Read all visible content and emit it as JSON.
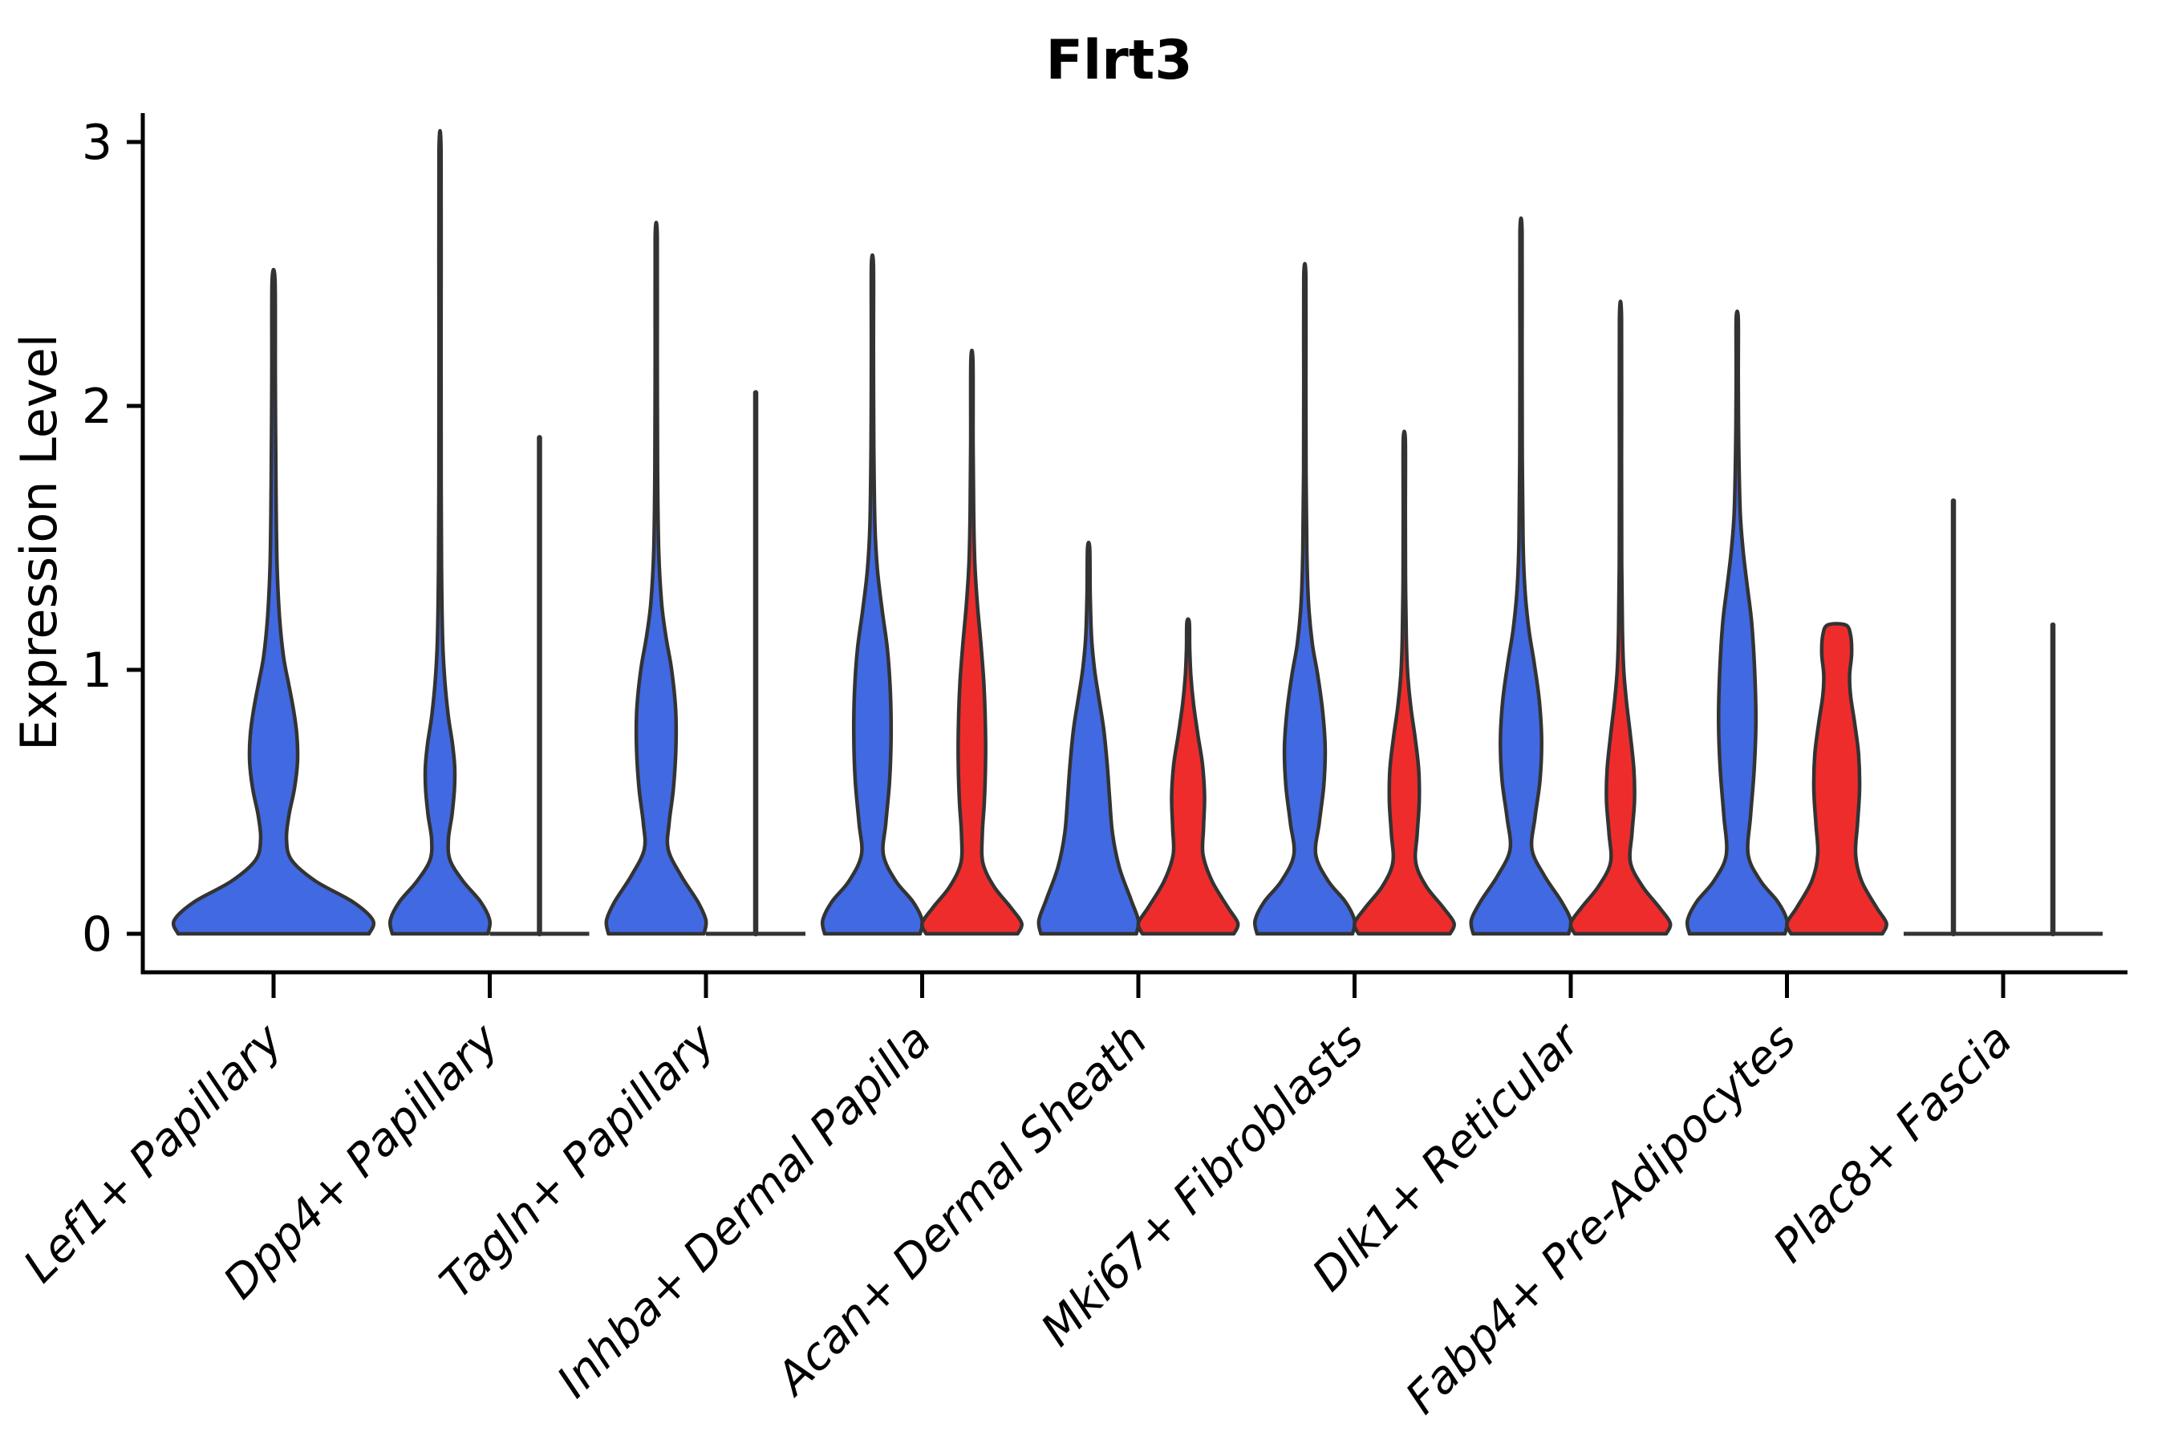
{
  "chart_data": {
    "type": "violin",
    "title": "Flrt3",
    "ylabel": "Expression Level",
    "xlabel": "",
    "yticks": [
      "0",
      "1",
      "2",
      "3"
    ],
    "ylim": [
      0,
      3.05
    ],
    "grid": false,
    "legend": "none",
    "colors": {
      "group_blue": "#4169E1",
      "group_red": "#EE2C2C",
      "outline": "#333333",
      "axis": "#000000"
    },
    "categories": [
      "Lef1+ Papillary",
      "Dpp4+ Papillary",
      "Tagln+ Papillary",
      "Inhba+ Dermal Papilla",
      "Acan+ Dermal Sheath",
      "Mki67+ Fibroblasts",
      "Dlk1+ Reticular",
      "Fabp4+ Pre-Adipocytes",
      "Plac8+ Fascia"
    ],
    "violins": [
      {
        "category": "Lef1+ Papillary",
        "blue": {
          "style": "density",
          "full_width": true,
          "max_expression": 2.47,
          "density_profile": [
            [
              0,
              0.96
            ],
            [
              0.05,
              1.0
            ],
            [
              0.12,
              0.8
            ],
            [
              0.2,
              0.42
            ],
            [
              0.28,
              0.18
            ],
            [
              0.36,
              0.13
            ],
            [
              0.45,
              0.155
            ],
            [
              0.55,
              0.21
            ],
            [
              0.65,
              0.24
            ],
            [
              0.75,
              0.235
            ],
            [
              0.85,
              0.2
            ],
            [
              0.95,
              0.15
            ],
            [
              1.05,
              0.1
            ],
            [
              1.2,
              0.06
            ],
            [
              1.4,
              0.035
            ],
            [
              1.7,
              0.024
            ],
            [
              2.1,
              0.018
            ],
            [
              2.47,
              0.015
            ]
          ]
        },
        "red": {
          "style": "absent"
        }
      },
      {
        "category": "Dpp4+ Papillary",
        "blue": {
          "style": "density",
          "max_expression": 2.96,
          "density_profile": [
            [
              0,
              0.96
            ],
            [
              0.05,
              1.0
            ],
            [
              0.12,
              0.82
            ],
            [
              0.2,
              0.46
            ],
            [
              0.28,
              0.2
            ],
            [
              0.36,
              0.17
            ],
            [
              0.45,
              0.24
            ],
            [
              0.55,
              0.29
            ],
            [
              0.63,
              0.295
            ],
            [
              0.72,
              0.25
            ],
            [
              0.82,
              0.17
            ],
            [
              0.95,
              0.1
            ],
            [
              1.1,
              0.055
            ],
            [
              1.35,
              0.032
            ],
            [
              1.7,
              0.022
            ],
            [
              2.3,
              0.017
            ],
            [
              2.96,
              0.014
            ]
          ]
        },
        "red": {
          "style": "flat_zero",
          "max_expression": 1.88
        }
      },
      {
        "category": "Tagln+ Papillary",
        "blue": {
          "style": "density",
          "max_expression": 2.64,
          "density_profile": [
            [
              0,
              0.96
            ],
            [
              0.05,
              1.0
            ],
            [
              0.12,
              0.84
            ],
            [
              0.22,
              0.5
            ],
            [
              0.32,
              0.24
            ],
            [
              0.42,
              0.26
            ],
            [
              0.55,
              0.345
            ],
            [
              0.7,
              0.395
            ],
            [
              0.85,
              0.39
            ],
            [
              1.0,
              0.31
            ],
            [
              1.12,
              0.2
            ],
            [
              1.25,
              0.11
            ],
            [
              1.45,
              0.05
            ],
            [
              1.75,
              0.028
            ],
            [
              2.2,
              0.018
            ],
            [
              2.64,
              0.015
            ]
          ]
        },
        "red": {
          "style": "flat_zero",
          "max_expression": 2.05
        }
      },
      {
        "category": "Inhba+ Dermal Papilla",
        "blue": {
          "style": "density",
          "max_expression": 2.53,
          "density_profile": [
            [
              0,
              0.96
            ],
            [
              0.05,
              1.0
            ],
            [
              0.12,
              0.82
            ],
            [
              0.2,
              0.47
            ],
            [
              0.3,
              0.22
            ],
            [
              0.42,
              0.27
            ],
            [
              0.58,
              0.345
            ],
            [
              0.75,
              0.375
            ],
            [
              0.92,
              0.36
            ],
            [
              1.08,
              0.3
            ],
            [
              1.22,
              0.2
            ],
            [
              1.38,
              0.1
            ],
            [
              1.55,
              0.05
            ],
            [
              1.85,
              0.028
            ],
            [
              2.2,
              0.018
            ],
            [
              2.53,
              0.015
            ]
          ]
        },
        "red": {
          "style": "density",
          "max_expression": 2.17,
          "density_profile": [
            [
              0,
              0.92
            ],
            [
              0.04,
              1.0
            ],
            [
              0.1,
              0.78
            ],
            [
              0.18,
              0.44
            ],
            [
              0.27,
              0.22
            ],
            [
              0.38,
              0.21
            ],
            [
              0.5,
              0.25
            ],
            [
              0.65,
              0.275
            ],
            [
              0.8,
              0.27
            ],
            [
              0.95,
              0.24
            ],
            [
              1.1,
              0.18
            ],
            [
              1.25,
              0.11
            ],
            [
              1.4,
              0.06
            ],
            [
              1.6,
              0.035
            ],
            [
              1.85,
              0.024
            ],
            [
              2.17,
              0.018
            ]
          ]
        }
      },
      {
        "category": "Acan+ Dermal Sheath",
        "blue": {
          "style": "density",
          "max_expression": 1.46,
          "density_profile": [
            [
              0,
              0.96
            ],
            [
              0.05,
              1.0
            ],
            [
              0.13,
              0.85
            ],
            [
              0.25,
              0.62
            ],
            [
              0.38,
              0.48
            ],
            [
              0.52,
              0.42
            ],
            [
              0.65,
              0.37
            ],
            [
              0.78,
              0.3
            ],
            [
              0.9,
              0.2
            ],
            [
              1.0,
              0.12
            ],
            [
              1.12,
              0.06
            ],
            [
              1.28,
              0.032
            ],
            [
              1.46,
              0.022
            ]
          ]
        },
        "red": {
          "style": "density",
          "max_expression": 1.18,
          "density_profile": [
            [
              0,
              0.92
            ],
            [
              0.04,
              1.0
            ],
            [
              0.1,
              0.8
            ],
            [
              0.2,
              0.48
            ],
            [
              0.3,
              0.3
            ],
            [
              0.4,
              0.31
            ],
            [
              0.52,
              0.33
            ],
            [
              0.64,
              0.29
            ],
            [
              0.75,
              0.2
            ],
            [
              0.87,
              0.11
            ],
            [
              0.98,
              0.055
            ],
            [
              1.08,
              0.033
            ],
            [
              1.18,
              0.024
            ]
          ]
        }
      },
      {
        "category": "Mki67+ Fibroblasts",
        "blue": {
          "style": "density",
          "max_expression": 2.49,
          "density_profile": [
            [
              0,
              0.96
            ],
            [
              0.05,
              1.0
            ],
            [
              0.12,
              0.82
            ],
            [
              0.2,
              0.47
            ],
            [
              0.3,
              0.22
            ],
            [
              0.42,
              0.29
            ],
            [
              0.56,
              0.38
            ],
            [
              0.7,
              0.41
            ],
            [
              0.84,
              0.36
            ],
            [
              0.98,
              0.26
            ],
            [
              1.1,
              0.15
            ],
            [
              1.25,
              0.075
            ],
            [
              1.45,
              0.04
            ],
            [
              1.75,
              0.025
            ],
            [
              2.1,
              0.018
            ],
            [
              2.49,
              0.015
            ]
          ]
        },
        "red": {
          "style": "density",
          "max_expression": 1.87,
          "density_profile": [
            [
              0,
              0.92
            ],
            [
              0.04,
              1.0
            ],
            [
              0.1,
              0.78
            ],
            [
              0.18,
              0.44
            ],
            [
              0.27,
              0.23
            ],
            [
              0.38,
              0.26
            ],
            [
              0.5,
              0.3
            ],
            [
              0.62,
              0.29
            ],
            [
              0.74,
              0.22
            ],
            [
              0.86,
              0.13
            ],
            [
              0.98,
              0.07
            ],
            [
              1.12,
              0.04
            ],
            [
              1.35,
              0.025
            ],
            [
              1.6,
              0.02
            ],
            [
              1.87,
              0.016
            ]
          ]
        }
      },
      {
        "category": "Dlk1+ Reticular",
        "blue": {
          "style": "density",
          "max_expression": 2.66,
          "density_profile": [
            [
              0,
              0.96
            ],
            [
              0.05,
              1.0
            ],
            [
              0.12,
              0.82
            ],
            [
              0.22,
              0.47
            ],
            [
              0.32,
              0.22
            ],
            [
              0.44,
              0.28
            ],
            [
              0.58,
              0.38
            ],
            [
              0.73,
              0.415
            ],
            [
              0.88,
              0.37
            ],
            [
              1.02,
              0.27
            ],
            [
              1.15,
              0.16
            ],
            [
              1.3,
              0.08
            ],
            [
              1.5,
              0.04
            ],
            [
              1.85,
              0.025
            ],
            [
              2.25,
              0.018
            ],
            [
              2.66,
              0.015
            ]
          ]
        },
        "red": {
          "style": "density",
          "max_expression": 2.33,
          "density_profile": [
            [
              0,
              0.92
            ],
            [
              0.04,
              1.0
            ],
            [
              0.1,
              0.78
            ],
            [
              0.18,
              0.44
            ],
            [
              0.27,
              0.2
            ],
            [
              0.38,
              0.23
            ],
            [
              0.5,
              0.28
            ],
            [
              0.62,
              0.27
            ],
            [
              0.75,
              0.2
            ],
            [
              0.88,
              0.12
            ],
            [
              1.0,
              0.065
            ],
            [
              1.15,
              0.038
            ],
            [
              1.4,
              0.025
            ],
            [
              1.8,
              0.018
            ],
            [
              2.33,
              0.015
            ]
          ]
        }
      },
      {
        "category": "Fabp4+ Pre-Adipocytes",
        "blue": {
          "style": "density",
          "max_expression": 2.33,
          "density_profile": [
            [
              0,
              0.96
            ],
            [
              0.05,
              1.0
            ],
            [
              0.12,
              0.82
            ],
            [
              0.2,
              0.47
            ],
            [
              0.3,
              0.22
            ],
            [
              0.45,
              0.27
            ],
            [
              0.62,
              0.34
            ],
            [
              0.8,
              0.375
            ],
            [
              1.0,
              0.35
            ],
            [
              1.18,
              0.29
            ],
            [
              1.32,
              0.2
            ],
            [
              1.45,
              0.12
            ],
            [
              1.6,
              0.06
            ],
            [
              1.85,
              0.03
            ],
            [
              2.1,
              0.02
            ],
            [
              2.33,
              0.016
            ]
          ]
        },
        "red": {
          "style": "density",
          "blunt_top": true,
          "max_expression": 1.17,
          "density_profile": [
            [
              0,
              0.92
            ],
            [
              0.04,
              1.0
            ],
            [
              0.1,
              0.8
            ],
            [
              0.2,
              0.5
            ],
            [
              0.3,
              0.38
            ],
            [
              0.42,
              0.42
            ],
            [
              0.55,
              0.46
            ],
            [
              0.68,
              0.44
            ],
            [
              0.8,
              0.36
            ],
            [
              0.9,
              0.28
            ],
            [
              0.98,
              0.26
            ],
            [
              1.06,
              0.3
            ],
            [
              1.13,
              0.28
            ],
            [
              1.17,
              0.18
            ]
          ]
        }
      },
      {
        "category": "Plac8+ Fascia",
        "blue": {
          "style": "flat_zero",
          "max_expression": 1.64
        },
        "red": {
          "style": "flat_zero",
          "max_expression": 1.17
        }
      }
    ]
  }
}
